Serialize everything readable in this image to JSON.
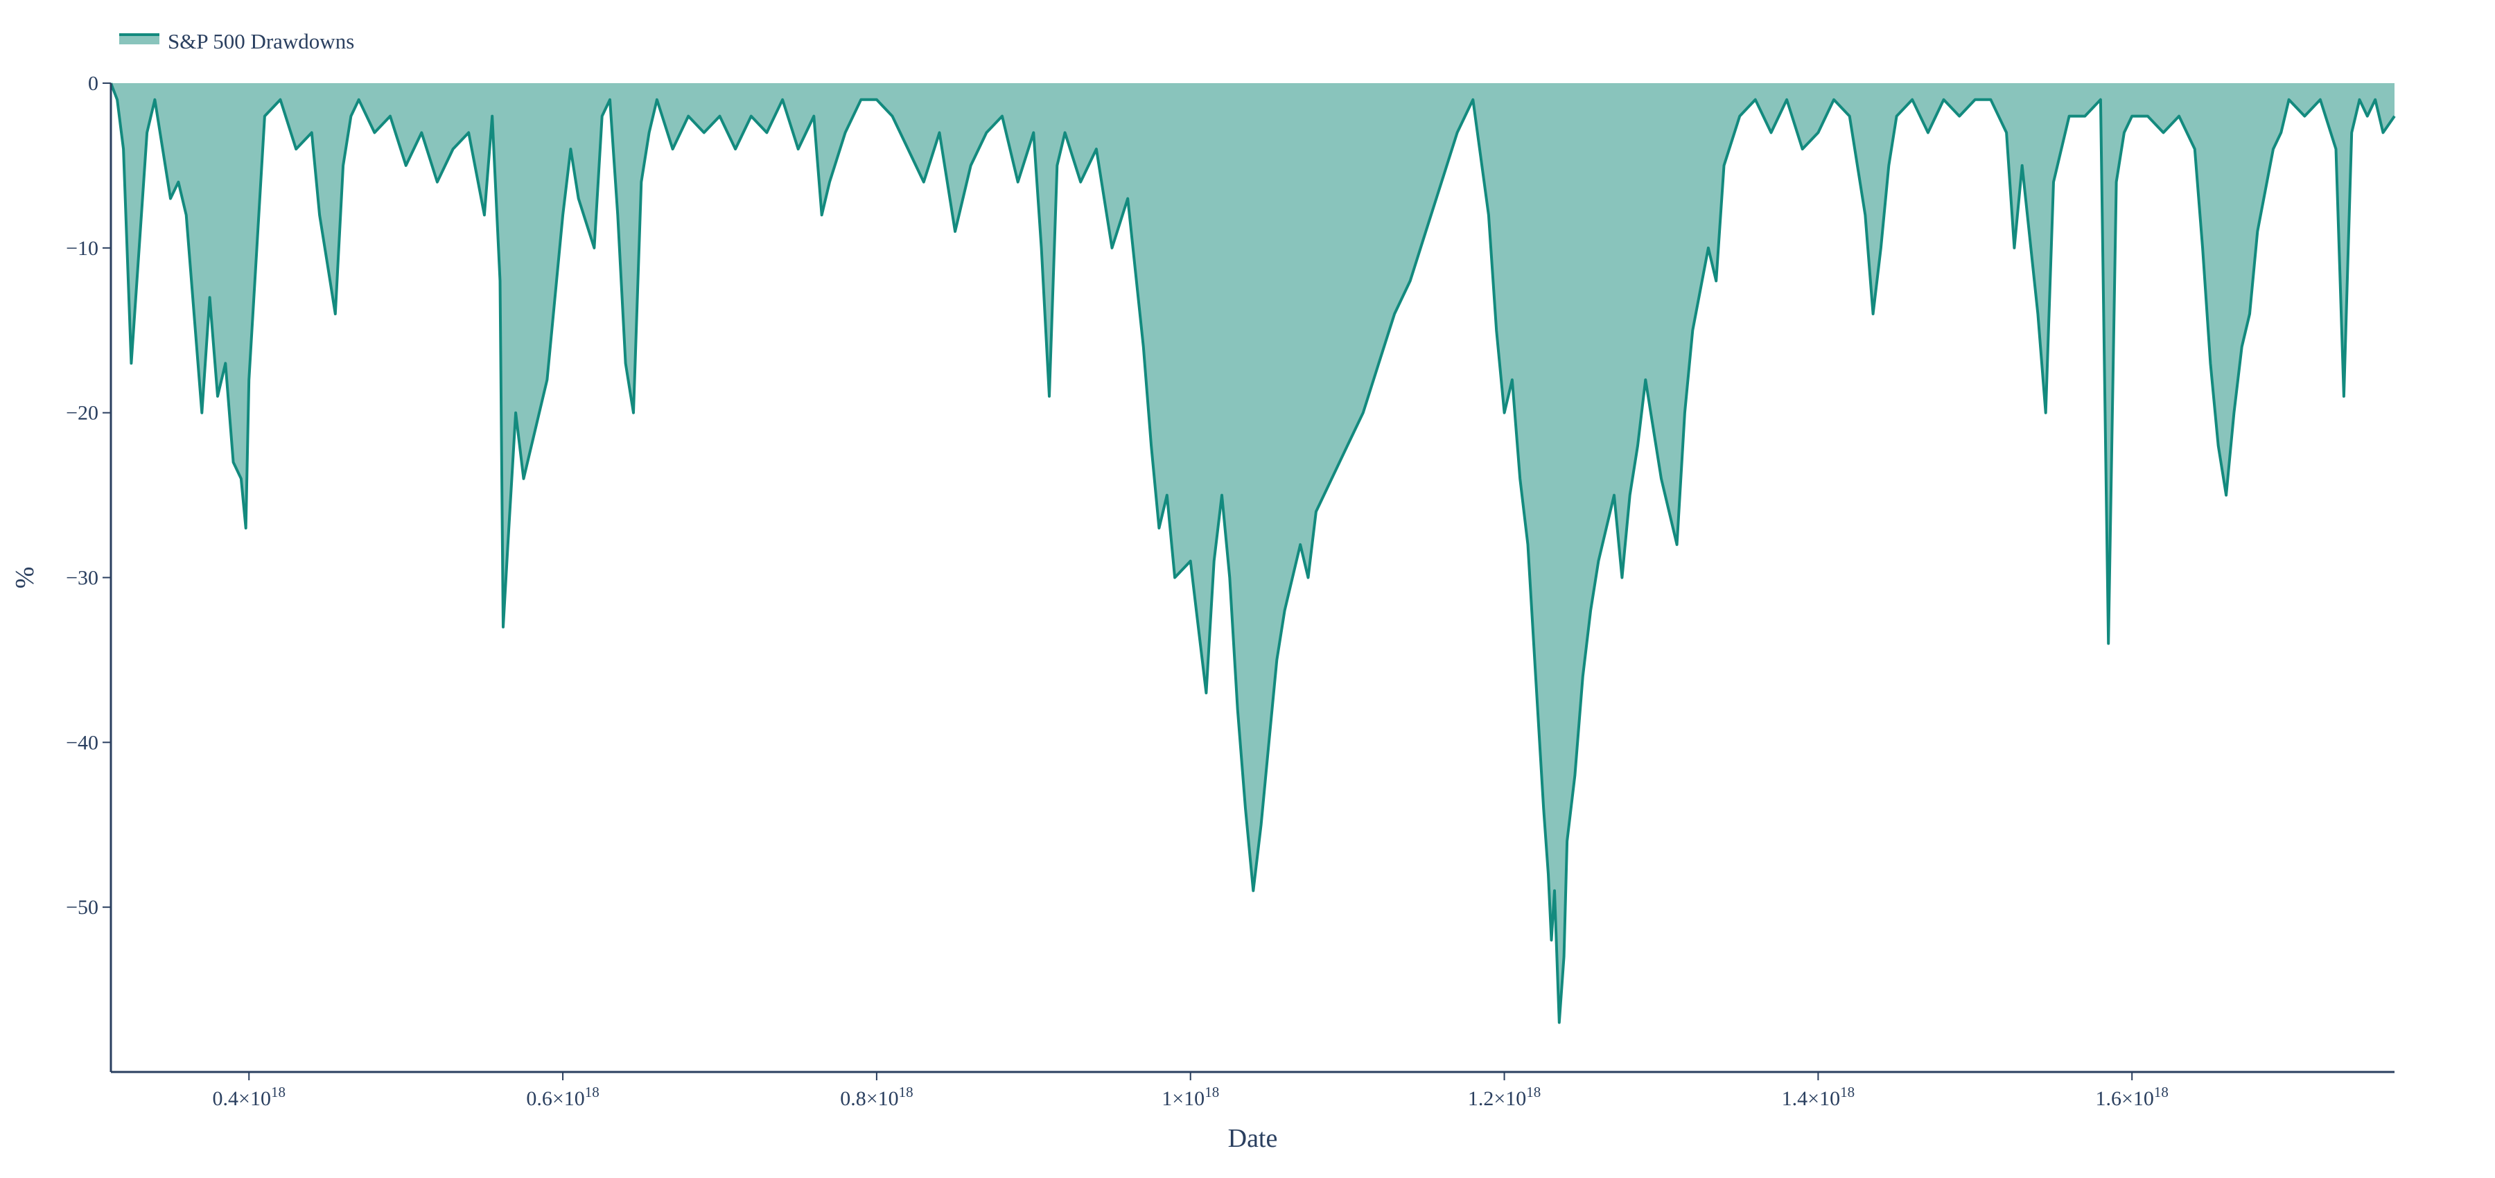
{
  "chart_data": {
    "type": "area",
    "xlabel": "Date",
    "ylabel": "%",
    "xlim": [
      3.12e+17,
      1.7673e+18
    ],
    "ylim": [
      -60,
      0
    ],
    "x_ticks": [
      {
        "value": 4e+17,
        "mantissa": "0.4",
        "base": "×10",
        "exp": "18"
      },
      {
        "value": 6e+17,
        "mantissa": "0.6",
        "base": "×10",
        "exp": "18"
      },
      {
        "value": 8e+17,
        "mantissa": "0.8",
        "base": "×10",
        "exp": "18"
      },
      {
        "value": 1e+18,
        "mantissa": "1",
        "base": "×10",
        "exp": "18"
      },
      {
        "value": 1.2e+18,
        "mantissa": "1.2",
        "base": "×10",
        "exp": "18"
      },
      {
        "value": 1.4e+18,
        "mantissa": "1.4",
        "base": "×10",
        "exp": "18"
      },
      {
        "value": 1.6e+18,
        "mantissa": "1.6",
        "base": "×10",
        "exp": "18"
      }
    ],
    "y_ticks": [
      {
        "value": 0,
        "label": "0"
      },
      {
        "value": -10,
        "label": "−10"
      },
      {
        "value": -20,
        "label": "−20"
      },
      {
        "value": -30,
        "label": "−30"
      },
      {
        "value": -40,
        "label": "−40"
      },
      {
        "value": -50,
        "label": "−50"
      }
    ],
    "grid": false,
    "legend_position": "top-left",
    "colors": {
      "line": "#138a7e",
      "fill": "#89c4bc",
      "axis": "#2a3f5f"
    },
    "series": [
      {
        "name": "S&P 500 Drawdowns",
        "x": [
          3.12e+17,
          3.16e+17,
          3.2e+17,
          3.25e+17,
          3.3e+17,
          3.35e+17,
          3.4e+17,
          3.45e+17,
          3.5e+17,
          3.55e+17,
          3.6e+17,
          3.65e+17,
          3.7e+17,
          3.75e+17,
          3.8e+17,
          3.85e+17,
          3.9e+17,
          3.95e+17,
          3.98e+17,
          4e+17,
          4.05e+17,
          4.1e+17,
          4.2e+17,
          4.3e+17,
          4.4e+17,
          4.45e+17,
          4.5e+17,
          4.55e+17,
          4.6e+17,
          4.65e+17,
          4.7e+17,
          4.8e+17,
          4.9e+17,
          5e+17,
          5.1e+17,
          5.2e+17,
          5.3e+17,
          5.4e+17,
          5.5e+17,
          5.55e+17,
          5.6e+17,
          5.62e+17,
          5.65e+17,
          5.7e+17,
          5.75e+17,
          5.8e+17,
          5.9e+17,
          6e+17,
          6.05e+17,
          6.1e+17,
          6.2e+17,
          6.25e+17,
          6.3e+17,
          6.35e+17,
          6.4e+17,
          6.45e+17,
          6.5e+17,
          6.55e+17,
          6.6e+17,
          6.7e+17,
          6.8e+17,
          6.9e+17,
          7e+17,
          7.1e+17,
          7.2e+17,
          7.3e+17,
          7.4e+17,
          7.5e+17,
          7.6e+17,
          7.65e+17,
          7.7e+17,
          7.8e+17,
          7.9e+17,
          8e+17,
          8.1e+17,
          8.2e+17,
          8.3e+17,
          8.4e+17,
          8.5e+17,
          8.6e+17,
          8.7e+17,
          8.8e+17,
          8.9e+17,
          9e+17,
          9.05e+17,
          9.1e+17,
          9.15e+17,
          9.2e+17,
          9.3e+17,
          9.4e+17,
          9.5e+17,
          9.6e+17,
          9.7e+17,
          9.75e+17,
          9.8e+17,
          9.85e+17,
          9.9e+17,
          1e+18,
          1.005e+18,
          1.01e+18,
          1.015e+18,
          1.02e+18,
          1.025e+18,
          1.03e+18,
          1.035e+18,
          1.04e+18,
          1.045e+18,
          1.05e+18,
          1.055e+18,
          1.06e+18,
          1.07e+18,
          1.075e+18,
          1.08e+18,
          1.09e+18,
          1.1e+18,
          1.11e+18,
          1.12e+18,
          1.13e+18,
          1.14e+18,
          1.15e+18,
          1.16e+18,
          1.17e+18,
          1.18e+18,
          1.19e+18,
          1.195e+18,
          1.2e+18,
          1.205e+18,
          1.21e+18,
          1.215e+18,
          1.22e+18,
          1.225e+18,
          1.228e+18,
          1.23e+18,
          1.232e+18,
          1.235e+18,
          1.238e+18,
          1.24e+18,
          1.245e+18,
          1.25e+18,
          1.255e+18,
          1.26e+18,
          1.265e+18,
          1.27e+18,
          1.275e+18,
          1.28e+18,
          1.285e+18,
          1.29e+18,
          1.3e+18,
          1.31e+18,
          1.315e+18,
          1.32e+18,
          1.33e+18,
          1.335e+18,
          1.34e+18,
          1.35e+18,
          1.36e+18,
          1.37e+18,
          1.38e+18,
          1.39e+18,
          1.4e+18,
          1.41e+18,
          1.42e+18,
          1.43e+18,
          1.435e+18,
          1.44e+18,
          1.445e+18,
          1.45e+18,
          1.46e+18,
          1.47e+18,
          1.48e+18,
          1.49e+18,
          1.5e+18,
          1.51e+18,
          1.52e+18,
          1.525e+18,
          1.53e+18,
          1.54e+18,
          1.545e+18,
          1.55e+18,
          1.56e+18,
          1.57e+18,
          1.58e+18,
          1.585e+18,
          1.59e+18,
          1.595e+18,
          1.6e+18,
          1.61e+18,
          1.62e+18,
          1.63e+18,
          1.64e+18,
          1.645e+18,
          1.65e+18,
          1.655e+18,
          1.66e+18,
          1.665e+18,
          1.67e+18,
          1.675e+18,
          1.68e+18,
          1.69e+18,
          1.695e+18,
          1.7e+18,
          1.71e+18,
          1.72e+18,
          1.73e+18,
          1.735e+18,
          1.74e+18,
          1.745e+18,
          1.75e+18,
          1.755e+18,
          1.76e+18,
          1.7673e+18
        ],
        "y": [
          0,
          -1,
          -4,
          -17,
          -10,
          -3,
          -1,
          -4,
          -7,
          -6,
          -8,
          -14,
          -20,
          -13,
          -19,
          -17,
          -23,
          -24,
          -27,
          -18,
          -10,
          -2,
          -1,
          -4,
          -3,
          -8,
          -11,
          -14,
          -5,
          -2,
          -1,
          -3,
          -2,
          -5,
          -3,
          -6,
          -4,
          -3,
          -8,
          -2,
          -12,
          -33,
          -28,
          -20,
          -24,
          -22,
          -18,
          -8,
          -4,
          -7,
          -10,
          -2,
          -1,
          -8,
          -17,
          -20,
          -6,
          -3,
          -1,
          -4,
          -2,
          -3,
          -2,
          -4,
          -2,
          -3,
          -1,
          -4,
          -2,
          -8,
          -6,
          -3,
          -1,
          -1,
          -2,
          -4,
          -6,
          -3,
          -9,
          -5,
          -3,
          -2,
          -6,
          -3,
          -10,
          -19,
          -5,
          -3,
          -6,
          -4,
          -10,
          -7,
          -16,
          -22,
          -27,
          -25,
          -30,
          -29,
          -33,
          -37,
          -29,
          -25,
          -30,
          -38,
          -44,
          -49,
          -45,
          -40,
          -35,
          -32,
          -28,
          -30,
          -26,
          -24,
          -22,
          -20,
          -17,
          -14,
          -12,
          -9,
          -6,
          -3,
          -1,
          -8,
          -15,
          -20,
          -18,
          -24,
          -28,
          -36,
          -44,
          -48,
          -52,
          -49,
          -57,
          -53,
          -46,
          -42,
          -36,
          -32,
          -29,
          -27,
          -25,
          -30,
          -25,
          -22,
          -18,
          -24,
          -28,
          -20,
          -15,
          -10,
          -12,
          -5,
          -2,
          -1,
          -3,
          -1,
          -4,
          -3,
          -1,
          -2,
          -8,
          -14,
          -10,
          -5,
          -2,
          -1,
          -3,
          -1,
          -2,
          -1,
          -1,
          -3,
          -10,
          -5,
          -14,
          -20,
          -6,
          -2,
          -2,
          -1,
          -34,
          -6,
          -3,
          -2,
          -2,
          -3,
          -2,
          -4,
          -10,
          -17,
          -22,
          -25,
          -20,
          -16,
          -14,
          -9,
          -4,
          -3,
          -1,
          -2,
          -1,
          -4,
          -19,
          -3,
          -1,
          -2,
          -1,
          -3,
          -2
        ]
      }
    ]
  }
}
